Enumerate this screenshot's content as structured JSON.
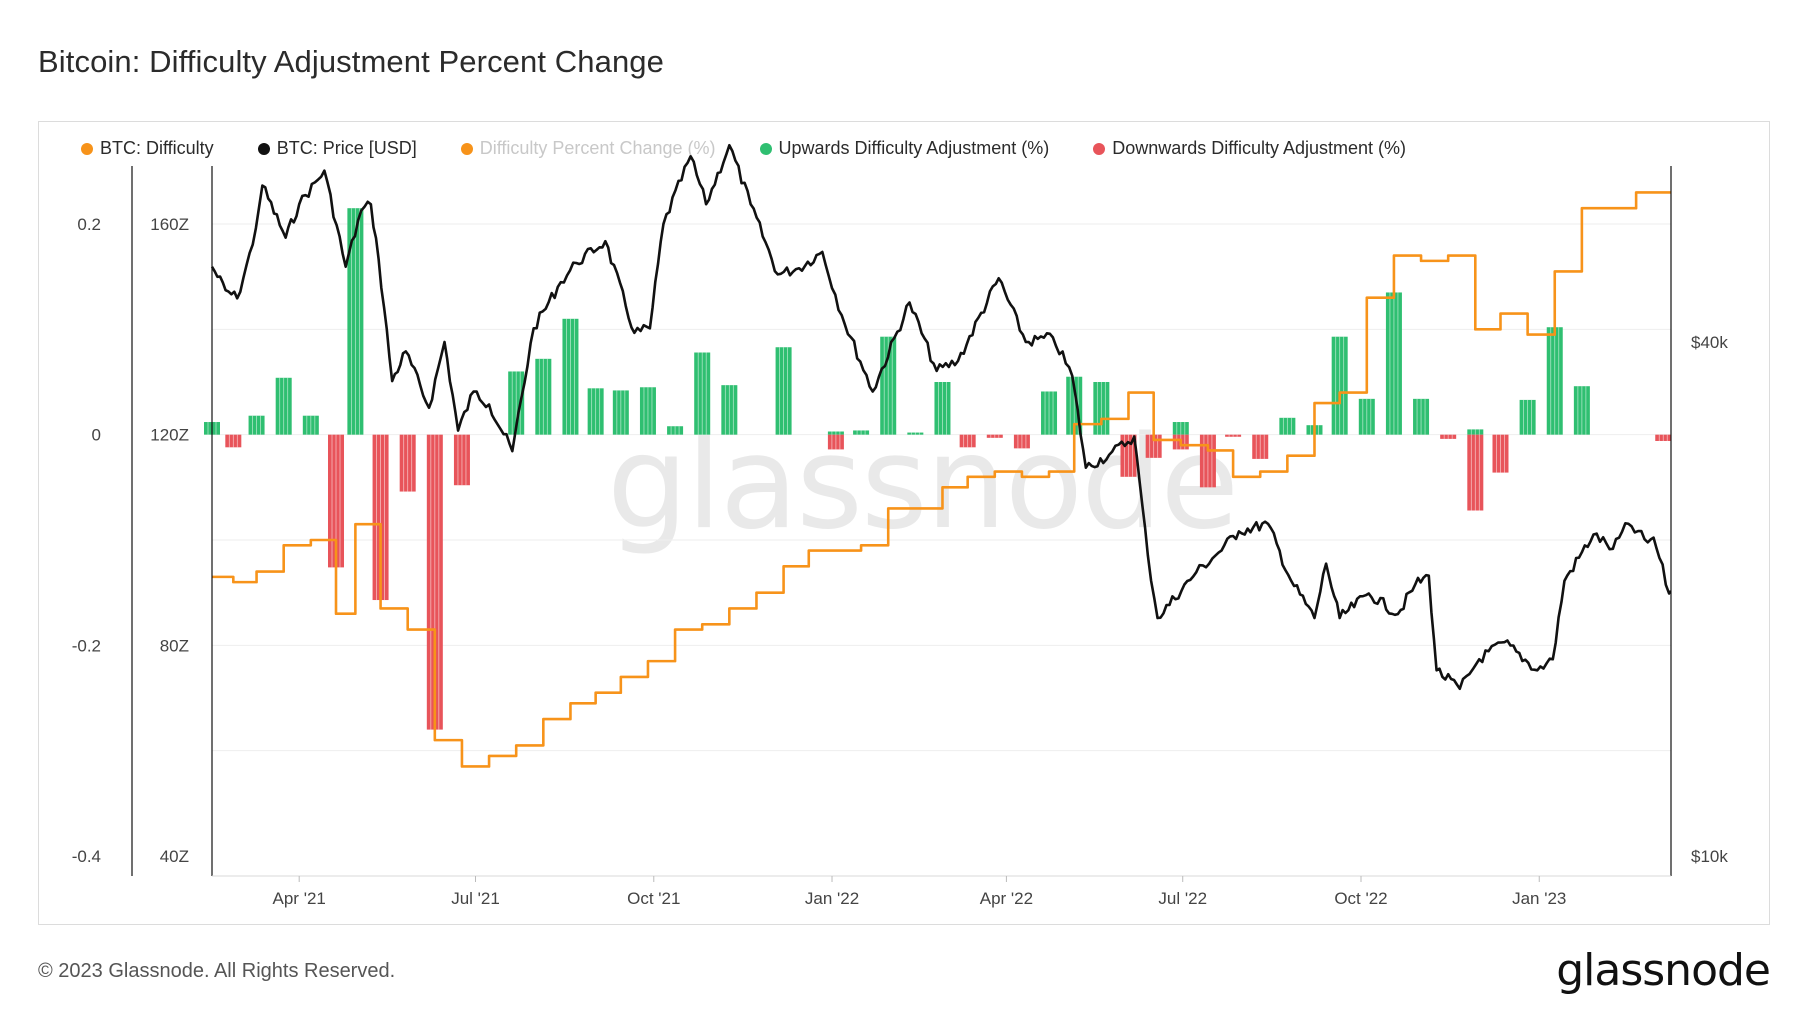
{
  "title": "Bitcoin: Difficulty Adjustment Percent Change",
  "footer": "© 2023 Glassnode. All Rights Reserved.",
  "brand": "glassnode",
  "watermark": "glassnode",
  "legend": [
    {
      "label": "BTC: Difficulty",
      "color": "#f7931a",
      "muted": false
    },
    {
      "label": "BTC: Price [USD]",
      "color": "#111111",
      "muted": false
    },
    {
      "label": "Difficulty Percent Change (%)",
      "color": "#f7931a",
      "muted": true
    },
    {
      "label": "Upwards Difficulty Adjustment (%)",
      "color": "#2fbf71",
      "muted": false
    },
    {
      "label": "Downwards Difficulty Adjustment (%)",
      "color": "#e8545a",
      "muted": false
    }
  ],
  "axes": {
    "pct_ticks": [
      "0.2",
      "0",
      "-0.2",
      "-0.4"
    ],
    "difficulty_ticks": [
      "160Z",
      "120Z",
      "80Z",
      "40Z"
    ],
    "price_ticks": [
      "$40k",
      "$10k"
    ],
    "x_ticks": [
      "Apr '21",
      "Jul '21",
      "Oct '21",
      "Jan '22",
      "Apr '22",
      "Jul '22",
      "Oct '22",
      "Jan '23"
    ]
  },
  "chart_data": {
    "type": "line",
    "x_range": [
      "2021-02-15",
      "2023-03-10"
    ],
    "pct_range": [
      -0.4,
      0.2
    ],
    "difficulty_range_z": [
      40,
      160
    ],
    "price_range_usd": [
      10000,
      40000
    ],
    "price_scale": "log",
    "series": [
      {
        "name": "BTC: Difficulty",
        "unit": "Z",
        "step": true,
        "points": [
          [
            "2021-02-15",
            93
          ],
          [
            "2021-02-26",
            92
          ],
          [
            "2021-03-10",
            94
          ],
          [
            "2021-03-24",
            99
          ],
          [
            "2021-04-07",
            100
          ],
          [
            "2021-04-20",
            86
          ],
          [
            "2021-04-30",
            103
          ],
          [
            "2021-05-13",
            87
          ],
          [
            "2021-05-27",
            83
          ],
          [
            "2021-06-10",
            62
          ],
          [
            "2021-06-24",
            57
          ],
          [
            "2021-07-08",
            59
          ],
          [
            "2021-07-22",
            61
          ],
          [
            "2021-08-05",
            66
          ],
          [
            "2021-08-19",
            69
          ],
          [
            "2021-09-01",
            71
          ],
          [
            "2021-09-14",
            74
          ],
          [
            "2021-09-28",
            77
          ],
          [
            "2021-10-12",
            83
          ],
          [
            "2021-10-26",
            84
          ],
          [
            "2021-11-09",
            87
          ],
          [
            "2021-11-23",
            90
          ],
          [
            "2021-12-07",
            95
          ],
          [
            "2021-12-20",
            98
          ],
          [
            "2022-01-03",
            98
          ],
          [
            "2022-01-16",
            99
          ],
          [
            "2022-01-30",
            106
          ],
          [
            "2022-02-13",
            106
          ],
          [
            "2022-02-27",
            110
          ],
          [
            "2022-03-12",
            112
          ],
          [
            "2022-03-26",
            113
          ],
          [
            "2022-04-09",
            112
          ],
          [
            "2022-04-23",
            113
          ],
          [
            "2022-05-06",
            122
          ],
          [
            "2022-05-20",
            123
          ],
          [
            "2022-06-03",
            128
          ],
          [
            "2022-06-16",
            119
          ],
          [
            "2022-06-30",
            118
          ],
          [
            "2022-07-14",
            117
          ],
          [
            "2022-07-27",
            112
          ],
          [
            "2022-08-10",
            113
          ],
          [
            "2022-08-24",
            116
          ],
          [
            "2022-09-07",
            126
          ],
          [
            "2022-09-20",
            128
          ],
          [
            "2022-10-04",
            146
          ],
          [
            "2022-10-18",
            154
          ],
          [
            "2022-11-01",
            153
          ],
          [
            "2022-11-15",
            154
          ],
          [
            "2022-11-29",
            140
          ],
          [
            "2022-12-12",
            143
          ],
          [
            "2022-12-26",
            139
          ],
          [
            "2023-01-09",
            151
          ],
          [
            "2023-01-23",
            163
          ],
          [
            "2023-02-06",
            163
          ],
          [
            "2023-02-20",
            166
          ],
          [
            "2023-03-06",
            166
          ]
        ]
      },
      {
        "name": "BTC: Price [USD]",
        "unit": "USD",
        "points": [
          [
            "2021-02-15",
            49000
          ],
          [
            "2021-02-22",
            46000
          ],
          [
            "2021-02-28",
            45000
          ],
          [
            "2021-03-08",
            52000
          ],
          [
            "2021-03-13",
            61000
          ],
          [
            "2021-03-25",
            53000
          ],
          [
            "2021-04-01",
            58000
          ],
          [
            "2021-04-14",
            63500
          ],
          [
            "2021-04-25",
            49000
          ],
          [
            "2021-05-03",
            57000
          ],
          [
            "2021-05-08",
            58000
          ],
          [
            "2021-05-12",
            50000
          ],
          [
            "2021-05-19",
            36000
          ],
          [
            "2021-05-26",
            39000
          ],
          [
            "2021-06-07",
            33500
          ],
          [
            "2021-06-15",
            40000
          ],
          [
            "2021-06-22",
            31500
          ],
          [
            "2021-06-30",
            35000
          ],
          [
            "2021-07-08",
            33800
          ],
          [
            "2021-07-20",
            29800
          ],
          [
            "2021-07-31",
            41500
          ],
          [
            "2021-08-14",
            47000
          ],
          [
            "2021-08-22",
            49500
          ],
          [
            "2021-09-06",
            52500
          ],
          [
            "2021-09-21",
            41000
          ],
          [
            "2021-09-29",
            41500
          ],
          [
            "2021-10-06",
            55000
          ],
          [
            "2021-10-20",
            66000
          ],
          [
            "2021-10-28",
            58000
          ],
          [
            "2021-11-09",
            68000
          ],
          [
            "2021-11-20",
            58000
          ],
          [
            "2021-12-04",
            48000
          ],
          [
            "2021-12-15",
            48800
          ],
          [
            "2021-12-27",
            51000
          ],
          [
            "2022-01-06",
            43000
          ],
          [
            "2022-01-22",
            35000
          ],
          [
            "2022-02-10",
            44500
          ],
          [
            "2022-02-24",
            37000
          ],
          [
            "2022-03-07",
            38000
          ],
          [
            "2022-03-28",
            47500
          ],
          [
            "2022-04-11",
            40000
          ],
          [
            "2022-04-25",
            40500
          ],
          [
            "2022-05-05",
            36500
          ],
          [
            "2022-05-12",
            28500
          ],
          [
            "2022-05-24",
            29500
          ],
          [
            "2022-06-06",
            31000
          ],
          [
            "2022-06-13",
            22500
          ],
          [
            "2022-06-18",
            19000
          ],
          [
            "2022-07-08",
            21500
          ],
          [
            "2022-07-18",
            22500
          ],
          [
            "2022-07-30",
            24000
          ],
          [
            "2022-08-14",
            24500
          ],
          [
            "2022-08-26",
            21000
          ],
          [
            "2022-09-07",
            19000
          ],
          [
            "2022-09-13",
            22000
          ],
          [
            "2022-09-20",
            19000
          ],
          [
            "2022-10-05",
            20300
          ],
          [
            "2022-10-20",
            19200
          ],
          [
            "2022-10-29",
            20800
          ],
          [
            "2022-11-05",
            21300
          ],
          [
            "2022-11-09",
            16500
          ],
          [
            "2022-11-21",
            15700
          ],
          [
            "2022-12-01",
            17000
          ],
          [
            "2022-12-14",
            17800
          ],
          [
            "2022-12-31",
            16500
          ],
          [
            "2023-01-08",
            17000
          ],
          [
            "2023-01-14",
            21000
          ],
          [
            "2023-01-29",
            23800
          ],
          [
            "2023-02-08",
            22900
          ],
          [
            "2023-02-16",
            24500
          ],
          [
            "2023-02-26",
            23300
          ],
          [
            "2023-03-01",
            23600
          ],
          [
            "2023-03-04",
            22350
          ],
          [
            "2023-03-09",
            20300
          ],
          [
            "2023-03-10",
            20400
          ]
        ]
      },
      {
        "name": "Upwards Difficulty Adjustment (%)",
        "unit": "fraction",
        "points": [
          [
            "2021-02-15",
            0.012
          ],
          [
            "2021-03-10",
            0.018
          ],
          [
            "2021-03-24",
            0.054
          ],
          [
            "2021-04-07",
            0.018
          ],
          [
            "2021-04-30",
            0.215
          ],
          [
            "2021-07-22",
            0.06
          ],
          [
            "2021-08-05",
            0.072
          ],
          [
            "2021-08-19",
            0.11
          ],
          [
            "2021-09-01",
            0.044
          ],
          [
            "2021-09-14",
            0.042
          ],
          [
            "2021-09-28",
            0.045
          ],
          [
            "2021-10-12",
            0.008
          ],
          [
            "2021-10-26",
            0.078
          ],
          [
            "2021-11-09",
            0.047
          ],
          [
            "2021-12-07",
            0.083
          ],
          [
            "2022-01-03",
            0.003
          ],
          [
            "2022-01-16",
            0.004
          ],
          [
            "2022-01-30",
            0.093
          ],
          [
            "2022-02-13",
            0.002
          ],
          [
            "2022-02-27",
            0.05
          ],
          [
            "2022-04-23",
            0.041
          ],
          [
            "2022-05-06",
            0.055
          ],
          [
            "2022-05-20",
            0.05
          ],
          [
            "2022-06-30",
            0.012
          ],
          [
            "2022-08-24",
            0.016
          ],
          [
            "2022-09-07",
            0.009
          ],
          [
            "2022-09-20",
            0.093
          ],
          [
            "2022-10-04",
            0.034
          ],
          [
            "2022-10-18",
            0.135
          ],
          [
            "2022-11-01",
            0.034
          ],
          [
            "2022-11-29",
            0.005
          ],
          [
            "2022-12-26",
            0.033
          ],
          [
            "2023-01-09",
            0.102
          ],
          [
            "2023-01-23",
            0.046
          ]
        ]
      },
      {
        "name": "Downwards Difficulty Adjustment (%)",
        "unit": "fraction",
        "points": [
          [
            "2021-02-26",
            -0.012
          ],
          [
            "2021-04-20",
            -0.126
          ],
          [
            "2021-05-13",
            -0.157
          ],
          [
            "2021-05-27",
            -0.054
          ],
          [
            "2021-06-10",
            -0.28
          ],
          [
            "2021-06-24",
            -0.048
          ],
          [
            "2022-01-03",
            -0.014
          ],
          [
            "2022-03-12",
            -0.012
          ],
          [
            "2022-03-26",
            -0.003
          ],
          [
            "2022-04-09",
            -0.013
          ],
          [
            "2022-06-03",
            -0.04
          ],
          [
            "2022-06-16",
            -0.022
          ],
          [
            "2022-06-30",
            -0.014
          ],
          [
            "2022-07-14",
            -0.05
          ],
          [
            "2022-07-27",
            -0.002
          ],
          [
            "2022-08-10",
            -0.023
          ],
          [
            "2022-11-15",
            -0.004
          ],
          [
            "2022-11-29",
            -0.072
          ],
          [
            "2022-12-12",
            -0.036
          ],
          [
            "2023-03-06",
            -0.006
          ]
        ]
      }
    ]
  }
}
